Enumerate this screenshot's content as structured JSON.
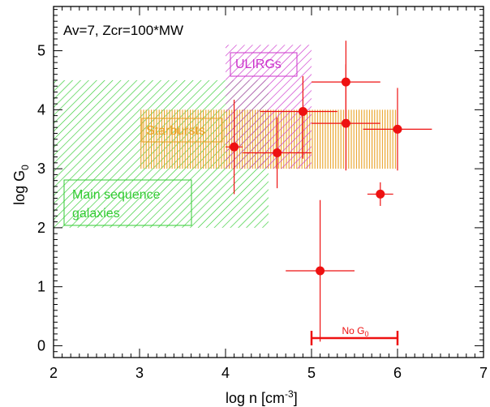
{
  "chart_data": {
    "type": "scatter",
    "annotation": "Av=7, Zcr=100*MW",
    "xlabel": "log n  [cm",
    "xlabel_sup": "-3",
    "xlabel_end": "]",
    "ylabel": "log G",
    "ylabel_sub": "0",
    "xlim": [
      2,
      7
    ],
    "ylim": [
      -0.2,
      5.75
    ],
    "x_ticks": [
      2,
      3,
      4,
      5,
      6,
      7
    ],
    "y_ticks": [
      0,
      1,
      2,
      3,
      4,
      5
    ],
    "regions": [
      {
        "name": "Main sequence galaxies",
        "label_lines": [
          "Main sequence",
          "galaxies"
        ],
        "x": [
          2.0,
          4.5
        ],
        "y": [
          2.0,
          4.5
        ],
        "color": "#33cc33",
        "hatch": "diagonal"
      },
      {
        "name": "Starbursts",
        "label_lines": [
          "Starbursts"
        ],
        "x": [
          3.0,
          6.0
        ],
        "y": [
          3.0,
          4.0
        ],
        "color": "#e8a020",
        "hatch": "vertical"
      },
      {
        "name": "ULIRGs",
        "label_lines": [
          "ULIRGs"
        ],
        "x": [
          4.0,
          5.0
        ],
        "y": [
          3.0,
          5.1
        ],
        "color": "#cc33cc",
        "hatch": "diagonal"
      }
    ],
    "points": [
      {
        "x": 4.1,
        "y": 3.37,
        "xerr": [
          0.1,
          0.1
        ],
        "yerr": [
          0.8,
          0.8
        ]
      },
      {
        "x": 4.6,
        "y": 3.27,
        "xerr": [
          0.4,
          0.4
        ],
        "yerr": [
          0.6,
          0.6
        ]
      },
      {
        "x": 4.9,
        "y": 3.97,
        "xerr": [
          0.5,
          0.4
        ],
        "yerr": [
          0.8,
          0.6
        ]
      },
      {
        "x": 5.4,
        "y": 4.47,
        "xerr": [
          0.4,
          0.4
        ],
        "yerr": [
          0.6,
          0.7
        ]
      },
      {
        "x": 5.4,
        "y": 3.77,
        "xerr": [
          0.4,
          0.4
        ],
        "yerr": [
          0.8,
          1.0
        ]
      },
      {
        "x": 6.0,
        "y": 3.67,
        "xerr": [
          0.4,
          0.4
        ],
        "yerr": [
          0.7,
          0.7
        ]
      },
      {
        "x": 5.8,
        "y": 2.57,
        "xerr": [
          0.15,
          0.15
        ],
        "yerr": [
          0.2,
          0.2
        ]
      },
      {
        "x": 5.1,
        "y": 1.27,
        "xerr": [
          0.4,
          0.4
        ],
        "yerr": [
          1.2,
          1.2
        ]
      }
    ],
    "no_g0": {
      "label": "No G",
      "label_sub": "0",
      "x": [
        5.0,
        6.0
      ],
      "y": 0.13
    },
    "colors": {
      "points": "#ee1111",
      "axis": "#000000"
    }
  }
}
